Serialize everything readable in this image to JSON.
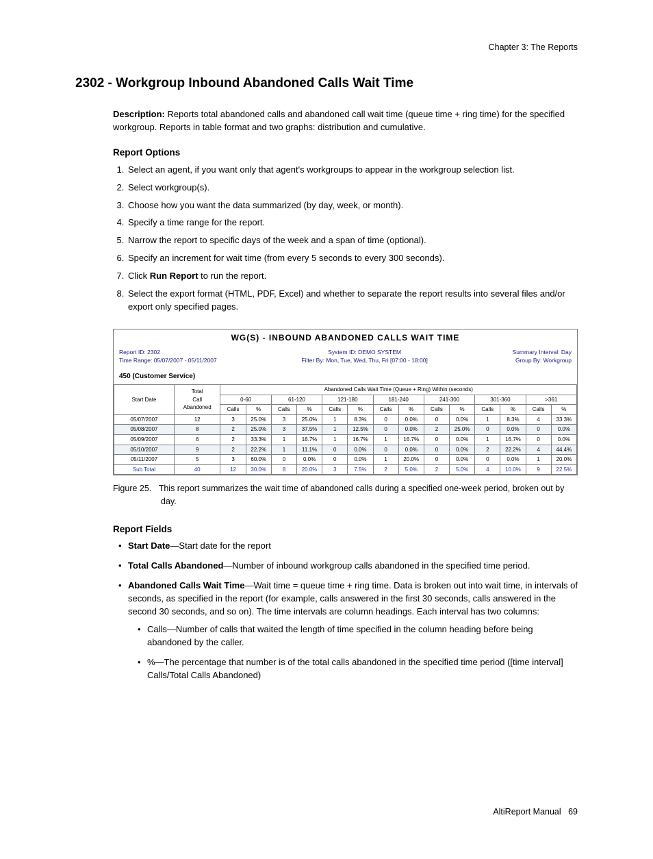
{
  "chapter": "Chapter 3:  The Reports",
  "title": "2302 - Workgroup Inbound Abandoned Calls Wait Time",
  "description_label": "Description:",
  "description_text": "Reports total abandoned calls and abandoned call wait time (queue time + ring time) for the specified workgroup. Reports in table format and two graphs: distribution and cumulative.",
  "report_options_heading": "Report Options",
  "report_options": [
    "Select an agent, if you want only that agent's workgroups to appear in the workgroup selection list.",
    "Select workgroup(s).",
    "Choose how you want the data summarized (by day, week, or month).",
    "Specify a time range for the report.",
    "Narrow the report to specific days of the week and a span of time (optional).",
    "Specify an increment for wait time (from every 5 seconds to every 300 seconds).",
    {
      "pre": "Click ",
      "bold": "Run Report",
      "post": " to run the report."
    },
    "Select the export format (HTML, PDF, Excel) and whether to separate the report results into several files and/or export only specified pages."
  ],
  "report": {
    "title": "WG(S) - INBOUND ABANDONED CALLS WAIT TIME",
    "meta": {
      "left1": "Report ID: 2302",
      "left2": "Time Range: 05/07/2007 - 05/11/2007",
      "mid1": "System ID: DEMO SYSTEM",
      "mid2": "Filter By: Mon, Tue, Wed, Thu, Fri [07:00 - 18:00]",
      "right1": "Summary Interval: Day",
      "right2": "Group By: Workgroup"
    },
    "workgroup_label": "450 (Customer Service)",
    "spanning_header": "Abandoned Calls Wait Time (Queue + Ring) Within (seconds)",
    "col_start": "Start Date",
    "col_total": "Total Call Abandoned",
    "ranges": [
      "0-60",
      "61-120",
      "121-180",
      "181-240",
      "241-300",
      "301-360",
      ">361"
    ],
    "subcols": [
      "Calls",
      "%"
    ],
    "rows": [
      {
        "date": "05/07/2007",
        "total": "12",
        "cells": [
          "3",
          "25.0%",
          "3",
          "25.0%",
          "1",
          "8.3%",
          "0",
          "0.0%",
          "0",
          "0.0%",
          "1",
          "8.3%",
          "4",
          "33.3%"
        ],
        "even": false
      },
      {
        "date": "05/08/2007",
        "total": "8",
        "cells": [
          "2",
          "25.0%",
          "3",
          "37.5%",
          "1",
          "12.5%",
          "0",
          "0.0%",
          "2",
          "25.0%",
          "0",
          "0.0%",
          "0",
          "0.0%"
        ],
        "even": true
      },
      {
        "date": "05/09/2007",
        "total": "6",
        "cells": [
          "2",
          "33.3%",
          "1",
          "16.7%",
          "1",
          "16.7%",
          "1",
          "16.7%",
          "0",
          "0.0%",
          "1",
          "16.7%",
          "0",
          "0.0%"
        ],
        "even": false
      },
      {
        "date": "05/10/2007",
        "total": "9",
        "cells": [
          "2",
          "22.2%",
          "1",
          "11.1%",
          "0",
          "0.0%",
          "0",
          "0.0%",
          "0",
          "0.0%",
          "2",
          "22.2%",
          "4",
          "44.4%"
        ],
        "even": true
      },
      {
        "date": "05/11/2007",
        "total": "5",
        "cells": [
          "3",
          "60.0%",
          "0",
          "0.0%",
          "0",
          "0.0%",
          "1",
          "20.0%",
          "0",
          "0.0%",
          "0",
          "0.0%",
          "1",
          "20.0%"
        ],
        "even": false
      }
    ],
    "subtotal": {
      "label": "Sub Total",
      "total": "40",
      "cells": [
        "12",
        "30.0%",
        "8",
        "20.0%",
        "3",
        "7.5%",
        "2",
        "5.0%",
        "2",
        "5.0%",
        "4",
        "10.0%",
        "9",
        "22.5%"
      ]
    },
    "colors": {
      "meta_text": "#1a1a7a",
      "sub_text": "#1a3aa0",
      "even_bg": "#eff3f7",
      "border": "#808080"
    }
  },
  "figure_caption_label": "Figure 25.",
  "figure_caption_text": "This report summarizes the wait time of abandoned calls during a specified one-week period, broken out by day.",
  "report_fields_heading": "Report Fields",
  "fields": [
    {
      "bold": "Start Date",
      "text": "—Start date for the report"
    },
    {
      "bold": "Total Calls Abandoned",
      "text": "—Number of inbound workgroup calls abandoned in the specified time period."
    },
    {
      "bold": "Abandoned Calls Wait Time",
      "text": "—Wait time = queue time + ring time. Data is broken out into wait time, in intervals of seconds, as specified in the report (for example, calls answered in the first 30 seconds, calls answered in the second 30 seconds, and so on). The time intervals are column headings. Each interval has two columns:",
      "sub": [
        "Calls—Number of calls that waited the length of time specified in the column heading before being abandoned by the caller.",
        "%—The percentage that number is of the total calls abandoned in the specified time period ([time interval] Calls/Total Calls Abandoned)"
      ]
    }
  ],
  "footer_doc": "AltiReport Manual",
  "footer_page": "69"
}
